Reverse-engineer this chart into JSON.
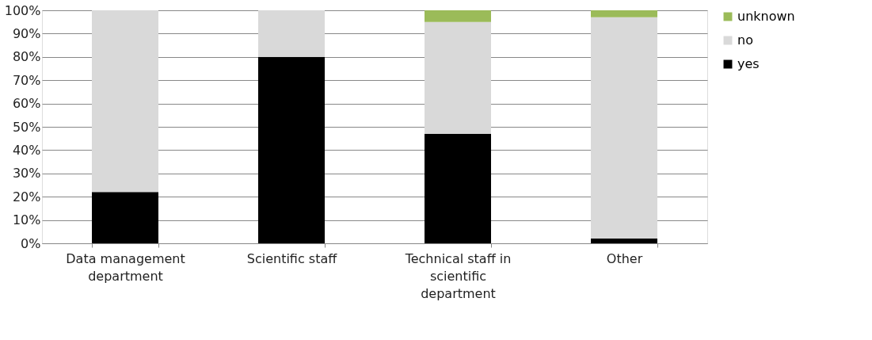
{
  "chart_data": {
    "type": "bar",
    "stacked": true,
    "categories": [
      "Data management department",
      "Scientific staff",
      "Technical staff in scientific department",
      "Other"
    ],
    "series": [
      {
        "name": "yes",
        "color": "#000000",
        "values": [
          22,
          80,
          47,
          2
        ]
      },
      {
        "name": "no",
        "color": "#d9d9d9",
        "values": [
          78,
          20,
          48,
          95
        ]
      },
      {
        "name": "unknown",
        "color": "#9bbb59",
        "values": [
          0,
          0,
          5,
          3
        ]
      }
    ],
    "ylim": [
      0,
      100
    ],
    "yticks": [
      {
        "value": 0,
        "label": "0%"
      },
      {
        "value": 10,
        "label": "10%"
      },
      {
        "value": 20,
        "label": "20%"
      },
      {
        "value": 30,
        "label": "30%"
      },
      {
        "value": 40,
        "label": "40%"
      },
      {
        "value": 50,
        "label": "50%"
      },
      {
        "value": 60,
        "label": "60%"
      },
      {
        "value": 70,
        "label": "70%"
      },
      {
        "value": 80,
        "label": "80%"
      },
      {
        "value": 90,
        "label": "90%"
      },
      {
        "value": 100,
        "label": "100%"
      }
    ],
    "grid": "y",
    "legend": "right"
  }
}
